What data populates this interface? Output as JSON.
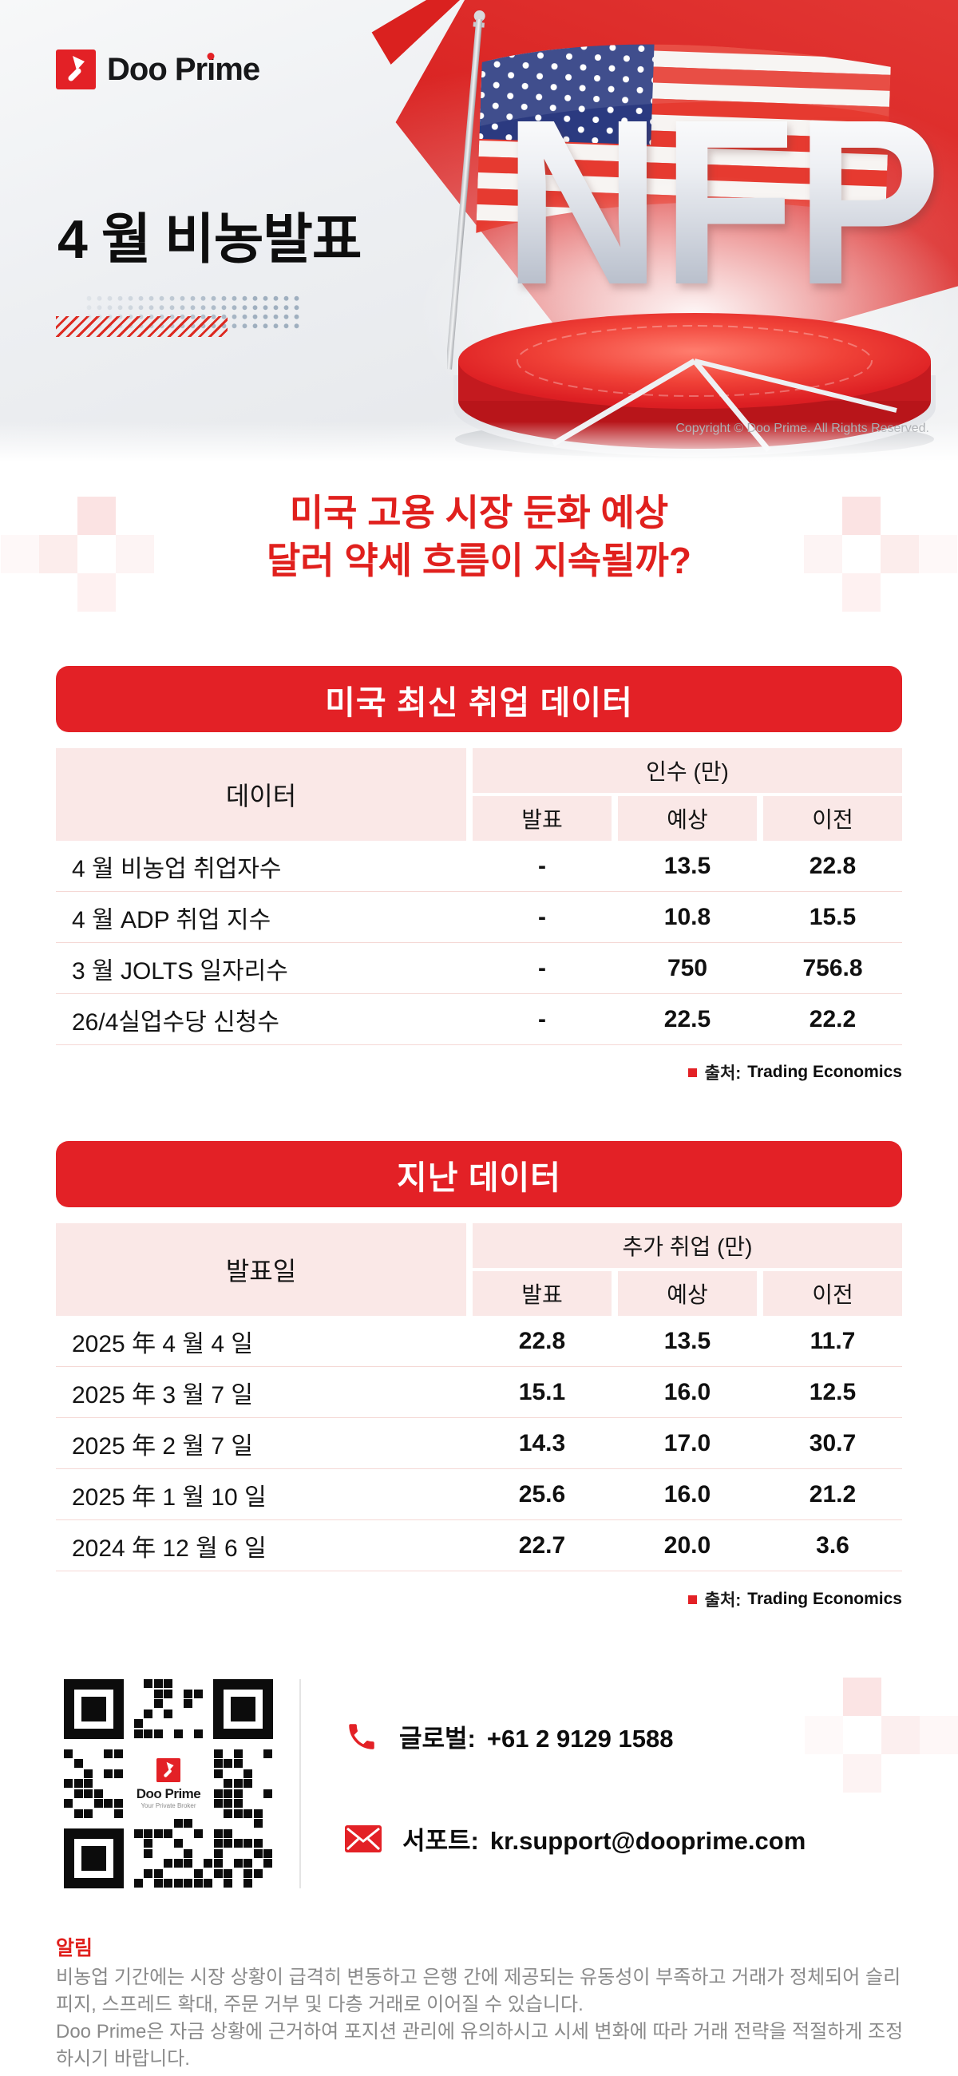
{
  "brand": {
    "name_pre": "Doo Pr",
    "name_i": "i",
    "name_post": "me"
  },
  "hero": {
    "title": "4 월 비농발표",
    "nfp_text": "NFP",
    "copyright": "Copyright © Doo Prime. All Rights Reserved."
  },
  "headline": {
    "line1": "미국 고용 시장 둔화 예상",
    "line2": "달러 약세 흐름이 지속될까?"
  },
  "table1": {
    "banner": "미국 최신 취업 데이터",
    "col_main": "데이터",
    "group_header": "인수 (만)",
    "subheaders": [
      "발표",
      "예상",
      "이전"
    ],
    "rows": [
      {
        "label": "4 월 비농업 취업자수",
        "announced": "-",
        "expected": "13.5",
        "previous": "22.8"
      },
      {
        "label": "4 월 ADP 취업 지수",
        "announced": "-",
        "expected": "10.8",
        "previous": "15.5"
      },
      {
        "label": "3 월 JOLTS 일자리수",
        "announced": "-",
        "expected": "750",
        "previous": "756.8"
      },
      {
        "label": "26/4실업수당 신청수",
        "announced": "-",
        "expected": "22.5",
        "previous": "22.2"
      }
    ],
    "source_label": "출처:",
    "source_value": "Trading Economics"
  },
  "table2": {
    "banner": "지난 데이터",
    "col_main": "발표일",
    "group_header": "추가 취업 (만)",
    "subheaders": [
      "발표",
      "예상",
      "이전"
    ],
    "rows": [
      {
        "label": "2025 年 4 월 4 일",
        "announced": "22.8",
        "expected": "13.5",
        "previous": "11.7"
      },
      {
        "label": "2025 年 3 월 7 일",
        "announced": "15.1",
        "expected": "16.0",
        "previous": "12.5"
      },
      {
        "label": "2025 年 2 월 7 일",
        "announced": "14.3",
        "expected": "17.0",
        "previous": "30.7"
      },
      {
        "label": "2025 年 1 월 10 일",
        "announced": "25.6",
        "expected": "16.0",
        "previous": "21.2"
      },
      {
        "label": "2024 年 12 월 6 일",
        "announced": "22.7",
        "expected": "20.0",
        "previous": "3.6"
      }
    ],
    "source_label": "출처:",
    "source_value": "Trading Economics"
  },
  "contact": {
    "phone_label": "글로벌:",
    "phone_number": "+61 2 9129 1588",
    "email_label": "서포트:",
    "email": "kr.support@dooprime.com",
    "qr_logo_name": "Doo Prime",
    "qr_logo_tagline": "Your Private Broker"
  },
  "notice": {
    "title": "알림",
    "para1": "비농업 기간에는 시장 상황이 급격히 변동하고 은행 간에 제공되는 유동성이 부족하고 거래가 정체되어 슬리피지, 스프레드 확대, 주문 거부 및 다층 거래로 이어질 수 있습니다.",
    "para2": "Doo Prime은 자금 상황에 근거하여 포지션 관리에 유의하시고 시세 변화에 따라 거래 전략을 적절하게 조정하시기 바랍니다."
  },
  "colors": {
    "brand_red": "#E32126",
    "headline_red": "#E0201D",
    "table_header_pink": "#FAE8E7",
    "row_divider_pink": "#F5D8D5",
    "notice_gray": "#8A8A8A",
    "copyright_gray": "#A0A3A7"
  },
  "icons": {
    "phone": "phone-handset-icon",
    "mail": "envelope-icon",
    "source_bullet": "red-square-bullet",
    "logo_mark": "doo-prime-arrow-mark",
    "qr": "qr-code"
  }
}
